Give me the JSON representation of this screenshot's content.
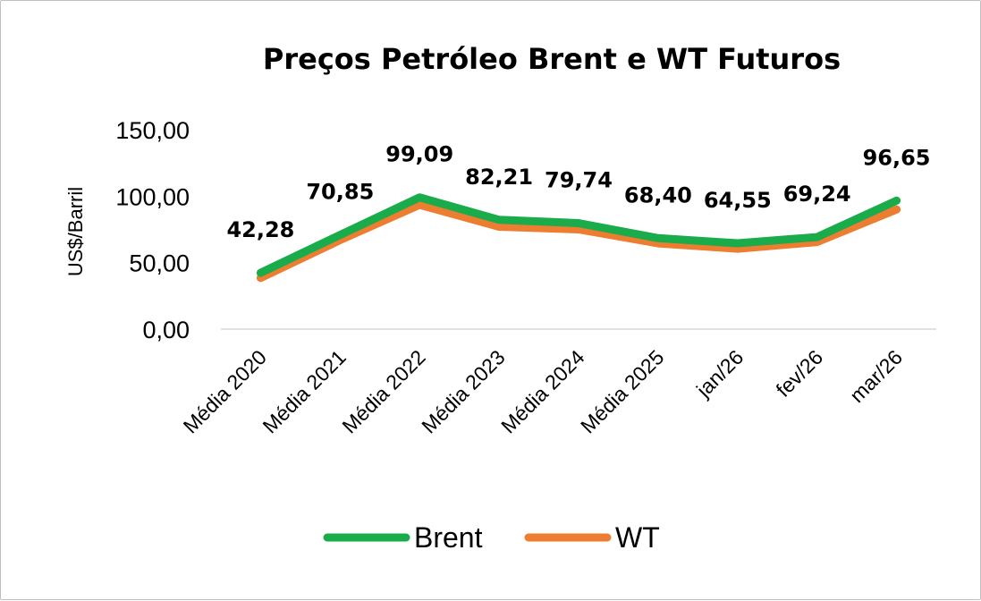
{
  "chart_data": {
    "type": "line",
    "title": "Preços Petróleo Brent e WT Futuros",
    "ylabel": "US$/Barril",
    "xlabel": "",
    "categories": [
      "Média 2020",
      "Média 2021",
      "Média 2022",
      "Média 2023",
      "Média 2024",
      "Média 2025",
      "jan/26",
      "fev/26",
      "mar/26"
    ],
    "ylim": [
      0,
      150
    ],
    "yticks": [
      "0,00",
      "50,00",
      "100,00",
      "150,00"
    ],
    "ytick_values": [
      0,
      50,
      100,
      150
    ],
    "grid": false,
    "legend_position": "bottom",
    "series": [
      {
        "name": "Brent",
        "color": "#1aab4b",
        "values": [
          42.28,
          70.85,
          99.09,
          82.21,
          79.74,
          68.4,
          64.55,
          69.24,
          96.65
        ],
        "data_labels": [
          "42,28",
          "70,85",
          "99,09",
          "82,21",
          "79,74",
          "68,40",
          "64,55",
          "69,24",
          "96,65"
        ]
      },
      {
        "name": "WT",
        "color": "#ed7d31",
        "values": [
          38.5,
          67.0,
          93.5,
          77.0,
          75.0,
          64.5,
          60.5,
          65.5,
          90.0
        ]
      }
    ]
  }
}
